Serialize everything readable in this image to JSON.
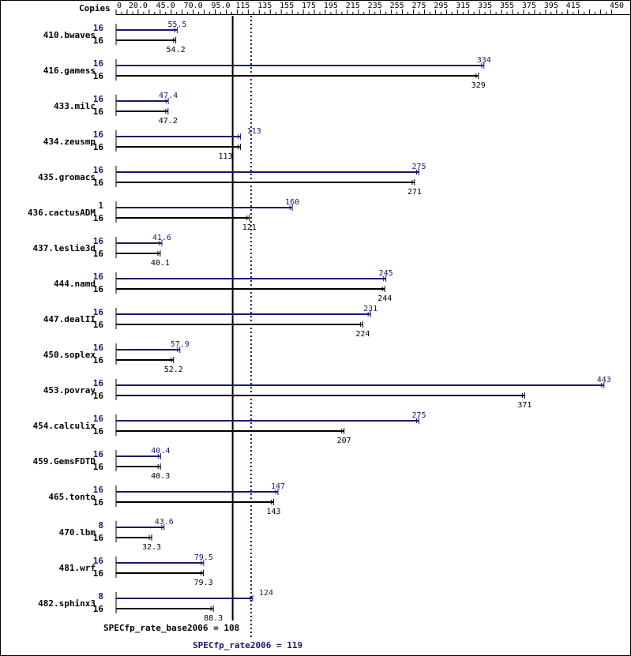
{
  "chart_data": {
    "type": "bar",
    "orientation": "horizontal",
    "copies_header": "Copies",
    "x_ticks": [
      "0",
      "20.0",
      "45.0",
      "70.0",
      "95.0",
      "115",
      "135",
      "155",
      "175",
      "195",
      "215",
      "235",
      "255",
      "275",
      "295",
      "315",
      "335",
      "355",
      "375",
      "395",
      "415",
      "450"
    ],
    "xlim": [
      0,
      450
    ],
    "grid": false,
    "peak_color": "#191970",
    "base_color": "#000000",
    "benchmarks": [
      {
        "name": "410.bwaves",
        "peak_copies": "16",
        "peak": 55.5,
        "peak_label": "55.5",
        "base_copies": "16",
        "base": 54.2,
        "base_label": "54.2"
      },
      {
        "name": "416.gamess",
        "peak_copies": "16",
        "peak": 334,
        "peak_label": "334",
        "base_copies": "16",
        "base": 329,
        "base_label": "329"
      },
      {
        "name": "433.milc",
        "peak_copies": "16",
        "peak": 47.4,
        "peak_label": "47.4",
        "base_copies": "16",
        "base": 47.2,
        "base_label": "47.2"
      },
      {
        "name": "434.zeusmp",
        "peak_copies": "16",
        "peak": 113,
        "peak_label": "113",
        "base_copies": "16",
        "base": 113,
        "base_label": "113"
      },
      {
        "name": "435.gromacs",
        "peak_copies": "16",
        "peak": 275,
        "peak_label": "275",
        "base_copies": "16",
        "base": 271,
        "base_label": "271"
      },
      {
        "name": "436.cactusADM",
        "peak_copies": "1",
        "peak": 160,
        "peak_label": "160",
        "base_copies": "16",
        "base": 121,
        "base_label": "121"
      },
      {
        "name": "437.leslie3d",
        "peak_copies": "16",
        "peak": 41.6,
        "peak_label": "41.6",
        "base_copies": "16",
        "base": 40.1,
        "base_label": "40.1"
      },
      {
        "name": "444.namd",
        "peak_copies": "16",
        "peak": 245,
        "peak_label": "245",
        "base_copies": "16",
        "base": 244,
        "base_label": "244"
      },
      {
        "name": "447.dealII",
        "peak_copies": "16",
        "peak": 231,
        "peak_label": "231",
        "base_copies": "16",
        "base": 224,
        "base_label": "224"
      },
      {
        "name": "450.soplex",
        "peak_copies": "16",
        "peak": 57.9,
        "peak_label": "57.9",
        "base_copies": "16",
        "base": 52.2,
        "base_label": "52.2"
      },
      {
        "name": "453.povray",
        "peak_copies": "16",
        "peak": 443,
        "peak_label": "443",
        "base_copies": "16",
        "base": 371,
        "base_label": "371"
      },
      {
        "name": "454.calculix",
        "peak_copies": "16",
        "peak": 275,
        "peak_label": "275",
        "base_copies": "16",
        "base": 207,
        "base_label": "207"
      },
      {
        "name": "459.GemsFDTD",
        "peak_copies": "16",
        "peak": 40.4,
        "peak_label": "40.4",
        "base_copies": "16",
        "base": 40.3,
        "base_label": "40.3"
      },
      {
        "name": "465.tonto",
        "peak_copies": "16",
        "peak": 147,
        "peak_label": "147",
        "base_copies": "16",
        "base": 143,
        "base_label": "143"
      },
      {
        "name": "470.lbm",
        "peak_copies": "8",
        "peak": 43.6,
        "peak_label": "43.6",
        "base_copies": "16",
        "base": 32.3,
        "base_label": "32.3"
      },
      {
        "name": "481.wrf",
        "peak_copies": "16",
        "peak": 79.5,
        "peak_label": "79.5",
        "base_copies": "16",
        "base": 79.3,
        "base_label": "79.3"
      },
      {
        "name": "482.sphinx3",
        "peak_copies": "8",
        "peak": 124,
        "peak_label": "124",
        "base_copies": "16",
        "base": 88.3,
        "base_label": "88.3"
      }
    ],
    "base_overall": {
      "label": "SPECfp_rate_base2006 = 108",
      "value": 108
    },
    "peak_overall": {
      "label": "SPECfp_rate2006 = 119",
      "value": 119
    }
  }
}
